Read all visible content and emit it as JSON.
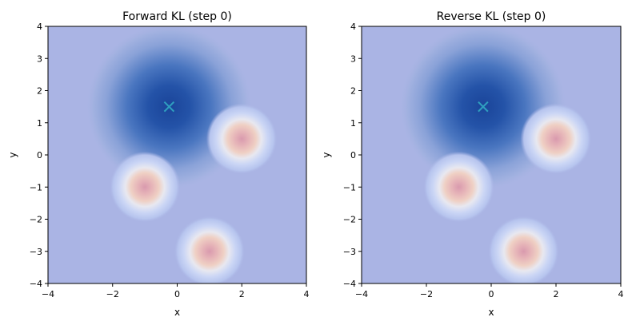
{
  "chart_data": [
    {
      "type": "heatmap",
      "title": "Forward KL (step 0)",
      "xlabel": "x",
      "ylabel": "y",
      "xlim": [
        -4,
        4
      ],
      "ylim": [
        -4,
        4
      ],
      "xticks": [
        -4,
        -2,
        0,
        2,
        4
      ],
      "yticks": [
        -4,
        -3,
        -2,
        -1,
        0,
        1,
        2,
        3,
        4
      ],
      "target_modes": [
        {
          "x": 2,
          "y": 0.5
        },
        {
          "x": -1,
          "y": -1
        },
        {
          "x": 1,
          "y": -3
        }
      ],
      "approx_density": {
        "mean_x": -0.25,
        "mean_y": 1.5
      },
      "marker": {
        "x": -0.25,
        "y": 1.5,
        "symbol": "x"
      }
    },
    {
      "type": "heatmap",
      "title": "Reverse KL (step 0)",
      "xlabel": "x",
      "ylabel": "y",
      "xlim": [
        -4,
        4
      ],
      "ylim": [
        -4,
        4
      ],
      "xticks": [
        -4,
        -2,
        0,
        2,
        4
      ],
      "yticks": [
        -4,
        -3,
        -2,
        -1,
        0,
        1,
        2,
        3,
        4
      ],
      "target_modes": [
        {
          "x": 2,
          "y": 0.5
        },
        {
          "x": -1,
          "y": -1
        },
        {
          "x": 1,
          "y": -3
        }
      ],
      "approx_density": {
        "mean_x": -0.25,
        "mean_y": 1.5
      },
      "marker": {
        "x": -0.25,
        "y": 1.5,
        "symbol": "x"
      }
    }
  ],
  "colors": {
    "background": "#aab4e4",
    "marker": "#2f9fbf",
    "blue_core": "#1a4499",
    "pink_core": "#d99aae"
  }
}
